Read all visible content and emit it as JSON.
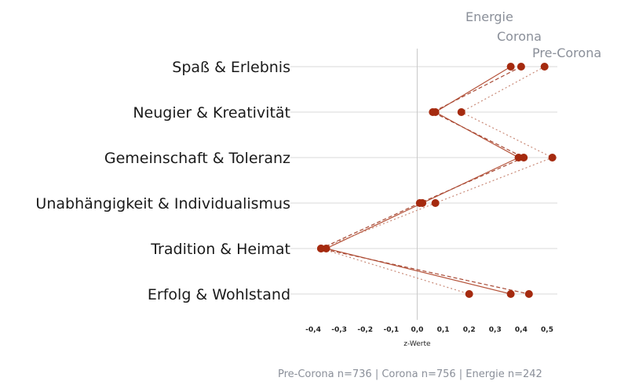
{
  "chart_data": {
    "type": "line",
    "orientation": "horizontal",
    "categories": [
      "Spaß & Erlebnis",
      "Neugier & Kreativität",
      "Gemeinschaft & Toleranz",
      "Unabhängigkeit & Individualismus",
      "Tradition & Heimat",
      "Erfolg & Wohlstand"
    ],
    "series": [
      {
        "name": "Energie",
        "values": [
          0.36,
          0.07,
          0.39,
          0.02,
          -0.35,
          0.36
        ],
        "line_style": "solid",
        "color": "#b5533a"
      },
      {
        "name": "Corona",
        "values": [
          0.4,
          0.06,
          0.41,
          0.01,
          -0.37,
          0.43
        ],
        "line_style": "dashed",
        "color": "#a84a35"
      },
      {
        "name": "Pre-Corona",
        "values": [
          0.49,
          0.17,
          0.52,
          0.07,
          -0.37,
          0.2
        ],
        "line_style": "dotted",
        "color": "#c98a78"
      }
    ],
    "xlabel": "z-Werte",
    "xlim": [
      -0.4,
      0.5
    ],
    "xticks": [
      -0.4,
      -0.3,
      -0.2,
      -0.1,
      0.0,
      0.1,
      0.2,
      0.3,
      0.4,
      0.5
    ],
    "xtick_labels": [
      "-0,4",
      "-0,3",
      "-0,2",
      "-0,1",
      "0,0",
      "0,1",
      "0,2",
      "0,3",
      "0,4",
      "0,5"
    ],
    "grid": "horizontal",
    "marker_color": "#a52a0f",
    "legend_position": "top-right"
  },
  "footnote": "Pre-Corona n=736  |  Corona n=756  |  Energie n=242"
}
